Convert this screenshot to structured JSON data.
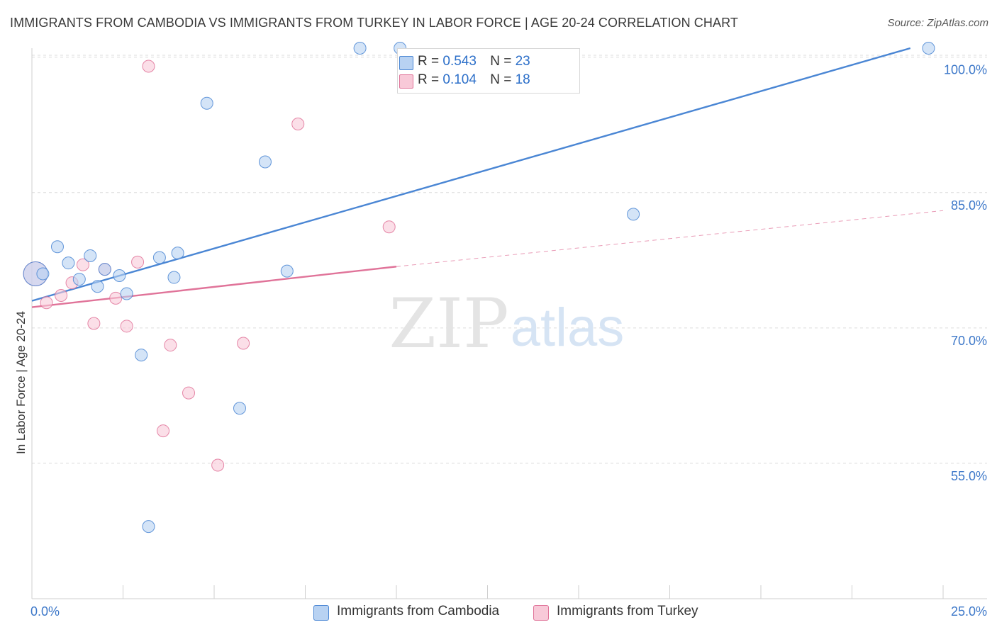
{
  "chart_data": {
    "type": "scatter",
    "title": "IMMIGRANTS FROM CAMBODIA VS IMMIGRANTS FROM TURKEY IN LABOR FORCE | AGE 20-24 CORRELATION CHART",
    "source": "Source: ZipAtlas.com",
    "ylabel": "In Labor Force | Age 20-24",
    "xlim": [
      0,
      25
    ],
    "ylim": [
      40,
      101
    ],
    "x_tick_labels": [
      "0.0%",
      "25.0%"
    ],
    "y_ticks": [
      {
        "value": 100,
        "label": "100.0%"
      },
      {
        "value": 85,
        "label": "85.0%"
      },
      {
        "value": 70,
        "label": "70.0%"
      },
      {
        "value": 55,
        "label": "55.0%"
      }
    ],
    "grid": true,
    "watermark": {
      "zip": "ZIP",
      "atlas": "atlas"
    },
    "legend": {
      "r_label": "R =",
      "n_label": "N =",
      "rows": [
        {
          "r": "0.543",
          "n": "23"
        },
        {
          "r": "0.104",
          "n": "18"
        }
      ]
    },
    "series": [
      {
        "name": "Immigrants from Cambodia",
        "color": "#4a86d4",
        "fill": "#b8d2f2",
        "points": [
          [
            0.1,
            76.0
          ],
          [
            0.3,
            76.0
          ],
          [
            0.7,
            79.0
          ],
          [
            1.0,
            77.2
          ],
          [
            1.3,
            75.4
          ],
          [
            1.6,
            78.0
          ],
          [
            1.8,
            74.6
          ],
          [
            2.0,
            76.5
          ],
          [
            2.4,
            75.8
          ],
          [
            2.6,
            73.8
          ],
          [
            3.0,
            67.0
          ],
          [
            3.2,
            48.0
          ],
          [
            3.5,
            77.8
          ],
          [
            3.9,
            75.6
          ],
          [
            4.0,
            78.3
          ],
          [
            4.8,
            94.9
          ],
          [
            5.7,
            61.1
          ],
          [
            6.4,
            88.4
          ],
          [
            7.0,
            76.3
          ],
          [
            9.0,
            101.0
          ],
          [
            10.1,
            101.0
          ],
          [
            16.5,
            82.6
          ],
          [
            24.6,
            101.0
          ]
        ],
        "trend": {
          "x": [
            0.0,
            24.1
          ],
          "y": [
            73.0,
            101.0
          ]
        }
      },
      {
        "name": "Immigrants from Turkey",
        "color": "#e07399",
        "fill": "#f8c9d8",
        "points": [
          [
            0.1,
            76.0
          ],
          [
            0.4,
            72.8
          ],
          [
            0.8,
            73.6
          ],
          [
            1.1,
            75.0
          ],
          [
            1.4,
            77.0
          ],
          [
            1.7,
            70.5
          ],
          [
            2.0,
            76.5
          ],
          [
            2.3,
            73.3
          ],
          [
            2.6,
            70.2
          ],
          [
            2.9,
            77.3
          ],
          [
            3.2,
            99.0
          ],
          [
            3.6,
            58.6
          ],
          [
            3.8,
            68.1
          ],
          [
            4.3,
            62.8
          ],
          [
            5.1,
            54.8
          ],
          [
            5.8,
            68.3
          ],
          [
            7.3,
            92.6
          ],
          [
            9.8,
            81.2
          ]
        ],
        "trend": {
          "x": [
            0.0,
            10.0
          ],
          "y": [
            72.3,
            76.8
          ]
        },
        "trend_dashed": {
          "x": [
            10.0,
            25.0
          ],
          "y": [
            76.8,
            83.0
          ]
        }
      }
    ]
  }
}
